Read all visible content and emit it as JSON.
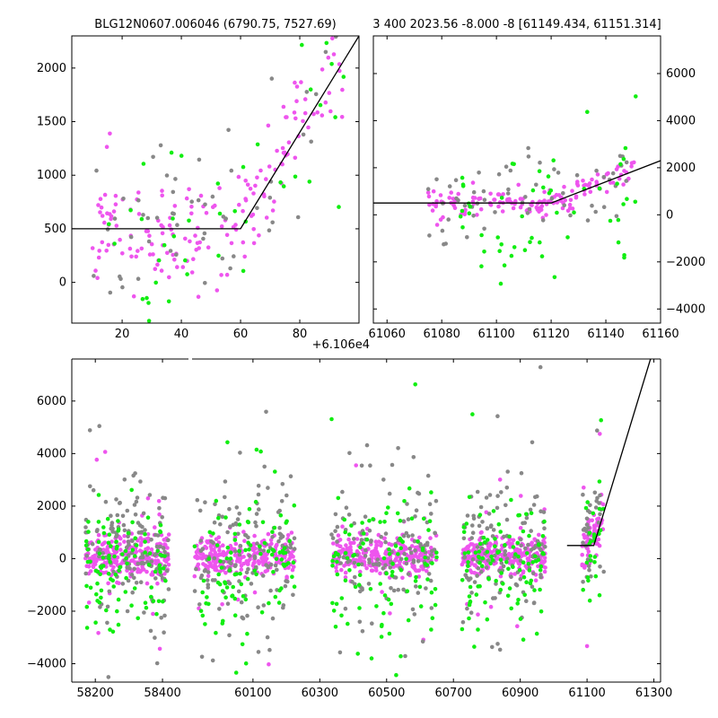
{
  "chart_data": [
    {
      "id": "top-left",
      "type": "scatter",
      "title": "BLG12N0607.006046 (6790.75, 7527.69)",
      "xlim": [
        3,
        100
      ],
      "ylim": [
        -380,
        2300
      ],
      "xticks": [
        20,
        40,
        60,
        80
      ],
      "xticklabels": [
        "20",
        "40",
        "60",
        "80"
      ],
      "yticks": [
        0,
        500,
        1000,
        1500,
        2000
      ],
      "yticklabels": [
        "0",
        "500",
        "1000",
        "1500",
        "2000"
      ],
      "fit_line": {
        "x": [
          3,
          60,
          100
        ],
        "y": [
          500,
          500,
          2300
        ]
      },
      "series": [
        {
          "name": "magenta",
          "color": "#ee55ee",
          "n": 170,
          "seed": 11,
          "model": "ramp",
          "xr": [
            10,
            95
          ],
          "t0": 60,
          "base": 500,
          "slope": 45,
          "sd": 250
        },
        {
          "name": "grey",
          "color": "#888888",
          "n": 55,
          "seed": 12,
          "model": "ramp",
          "xr": [
            10,
            95
          ],
          "t0": 60,
          "base": 550,
          "slope": 45,
          "sd": 450
        },
        {
          "name": "green",
          "color": "#11ee11",
          "n": 45,
          "seed": 13,
          "model": "ramp",
          "xr": [
            15,
            95
          ],
          "t0": 60,
          "base": 450,
          "slope": 40,
          "sd": 450
        }
      ]
    },
    {
      "id": "top-right",
      "type": "scatter",
      "title": "3 400 2023.56 -8.000 -8 [61149.434, 61151.314]",
      "xlim": [
        61055,
        61160
      ],
      "ylim": [
        -4600,
        7600
      ],
      "xticks": [
        61060,
        61080,
        61100,
        61120,
        61140,
        61160
      ],
      "xticklabels": [
        "61060",
        "61080",
        "61100",
        "61120",
        "61140",
        "61160"
      ],
      "yticks": [
        -4000,
        -2000,
        0,
        2000,
        4000,
        6000
      ],
      "yticklabels": [
        "−4000",
        "−2000",
        "0",
        "2000",
        "4000",
        "6000"
      ],
      "x_offset_label": "+6.106e4",
      "fit_line": {
        "x": [
          61055,
          61120,
          61160
        ],
        "y": [
          500,
          500,
          2300
        ]
      },
      "series": [
        {
          "name": "magenta",
          "color": "#ee55ee",
          "n": 150,
          "seed": 21,
          "model": "ramp",
          "xr": [
            61075,
            61151
          ],
          "t0": 61120,
          "base": 500,
          "slope": 45,
          "sd": 300
        },
        {
          "name": "grey",
          "color": "#888888",
          "n": 60,
          "seed": 22,
          "model": "ramp",
          "xr": [
            61075,
            61151
          ],
          "t0": 61120,
          "base": 600,
          "slope": 40,
          "sd": 1000
        },
        {
          "name": "green",
          "color": "#11ee11",
          "n": 55,
          "seed": 23,
          "model": "ramp",
          "xr": [
            61085,
            61151
          ],
          "t0": 61120,
          "base": 400,
          "slope": 40,
          "sd": 1500
        }
      ]
    },
    {
      "id": "bottom",
      "type": "scatter",
      "title": "",
      "ylim": [
        -4700,
        7600
      ],
      "yticks": [
        -4000,
        -2000,
        0,
        2000,
        4000,
        6000
      ],
      "yticklabels": [
        "−4000",
        "−2000",
        "0",
        "2000",
        "4000",
        "6000"
      ],
      "segments": [
        {
          "xlim": [
            58130,
            58480
          ],
          "xticks": [
            58200,
            58400
          ],
          "xticklabels": [
            "58200",
            "58400"
          ]
        },
        {
          "xlim": [
            59915,
            61320
          ],
          "xticks": [
            60100,
            60300,
            60500,
            60700,
            60900,
            61100,
            61300
          ],
          "xticklabels": [
            "60100",
            "60300",
            "60500",
            "60700",
            "60900",
            "61100",
            "61300"
          ]
        }
      ],
      "fit_line": {
        "x": [
          61040,
          61120,
          61290
        ],
        "y": [
          500,
          500,
          7600
        ]
      },
      "seasons": [
        [
          58170,
          58420
        ],
        [
          59925,
          60225
        ],
        [
          60335,
          60650
        ],
        [
          60725,
          60975
        ],
        [
          61085,
          61151
        ]
      ],
      "series": [
        {
          "name": "magenta",
          "color": "#ee55ee",
          "n": 1400,
          "seed": 31,
          "model": "seasons",
          "center": 100,
          "sd": 380,
          "tail_frac": 0.05,
          "tail_sd": 2200
        },
        {
          "name": "grey",
          "color": "#888888",
          "n": 700,
          "seed": 32,
          "model": "seasons",
          "center": 300,
          "sd": 1100,
          "tail_frac": 0.2,
          "tail_sd": 3000
        },
        {
          "name": "green",
          "color": "#11ee11",
          "n": 520,
          "seed": 33,
          "model": "seasons",
          "center": -300,
          "sd": 1200,
          "tail_frac": 0.15,
          "tail_sd": 2500
        }
      ]
    }
  ]
}
